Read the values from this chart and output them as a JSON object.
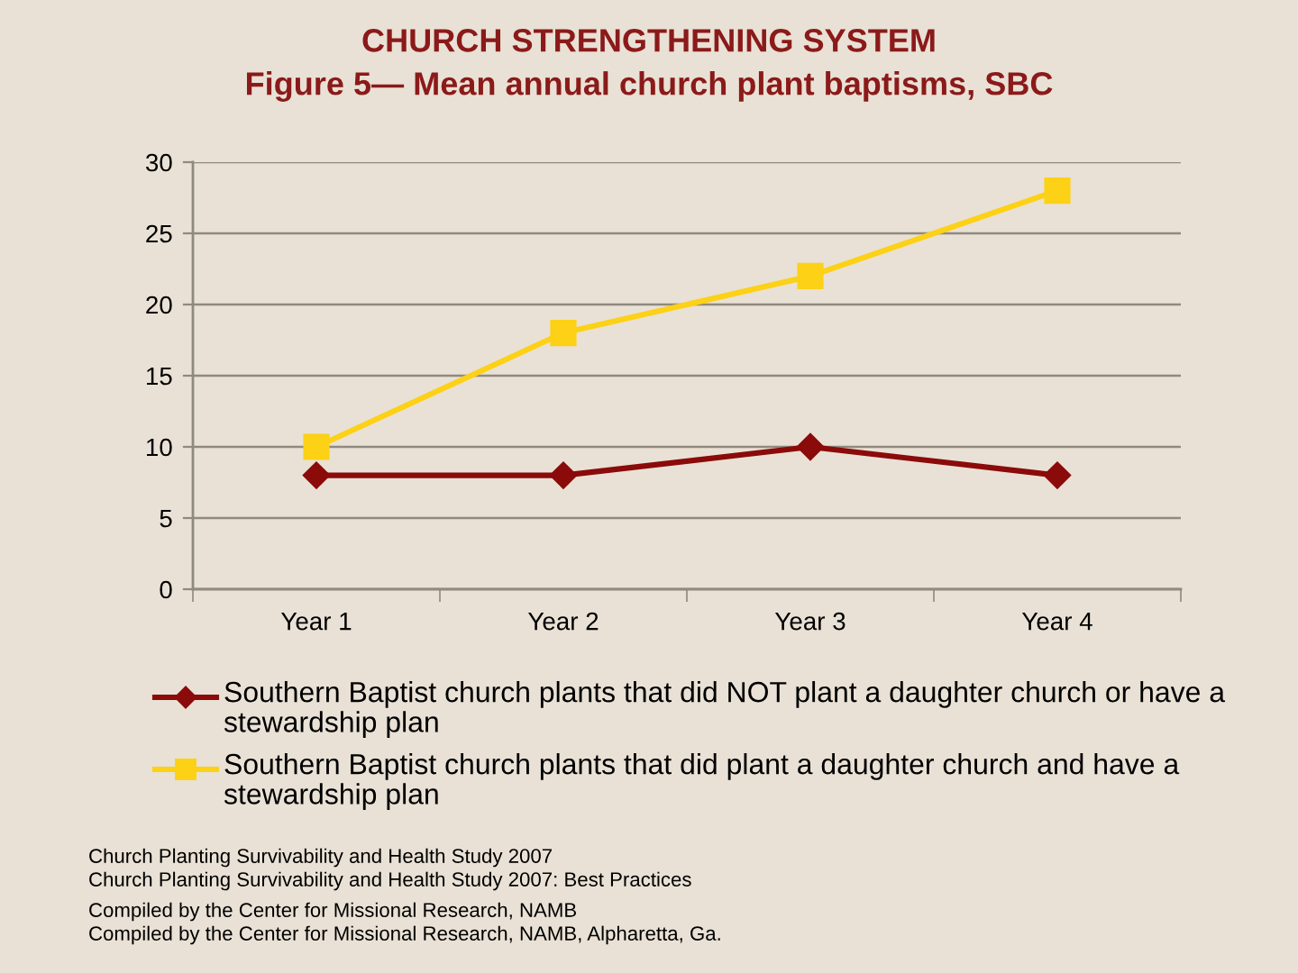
{
  "chart_data": {
    "type": "line",
    "title": "CHURCH STRENGTHENING SYSTEM",
    "subtitle": "Figure 5— Mean annual church plant baptisms, SBC",
    "categories": [
      "Year 1",
      "Year 2",
      "Year 3",
      "Year 4"
    ],
    "series": [
      {
        "name": "Southern Baptist church plants that did NOT plant a daughter church or have a stewardship plan",
        "color": "#8b0a0a",
        "marker": "diamond",
        "values": [
          8,
          8,
          10,
          8
        ]
      },
      {
        "name": "Southern Baptist church plants that did plant a daughter church and have a stewardship plan",
        "color": "#fcd116",
        "marker": "square",
        "values": [
          10,
          18,
          22,
          28
        ]
      }
    ],
    "ylim": [
      0,
      30
    ],
    "yticks": [
      0,
      5,
      10,
      15,
      20,
      25,
      30
    ],
    "grid": "y",
    "legend": "bottom",
    "line_style": "solid",
    "annotations": [
      "Church Planting Survivability and Health Study 2007",
      "Church Planting Survivability and Health Study 2007: Best Practices",
      "Compiled by the Center for Missional Research, NAMB",
      "Compiled by the Center for Missional Research, NAMB, Alpharetta, Ga."
    ]
  }
}
